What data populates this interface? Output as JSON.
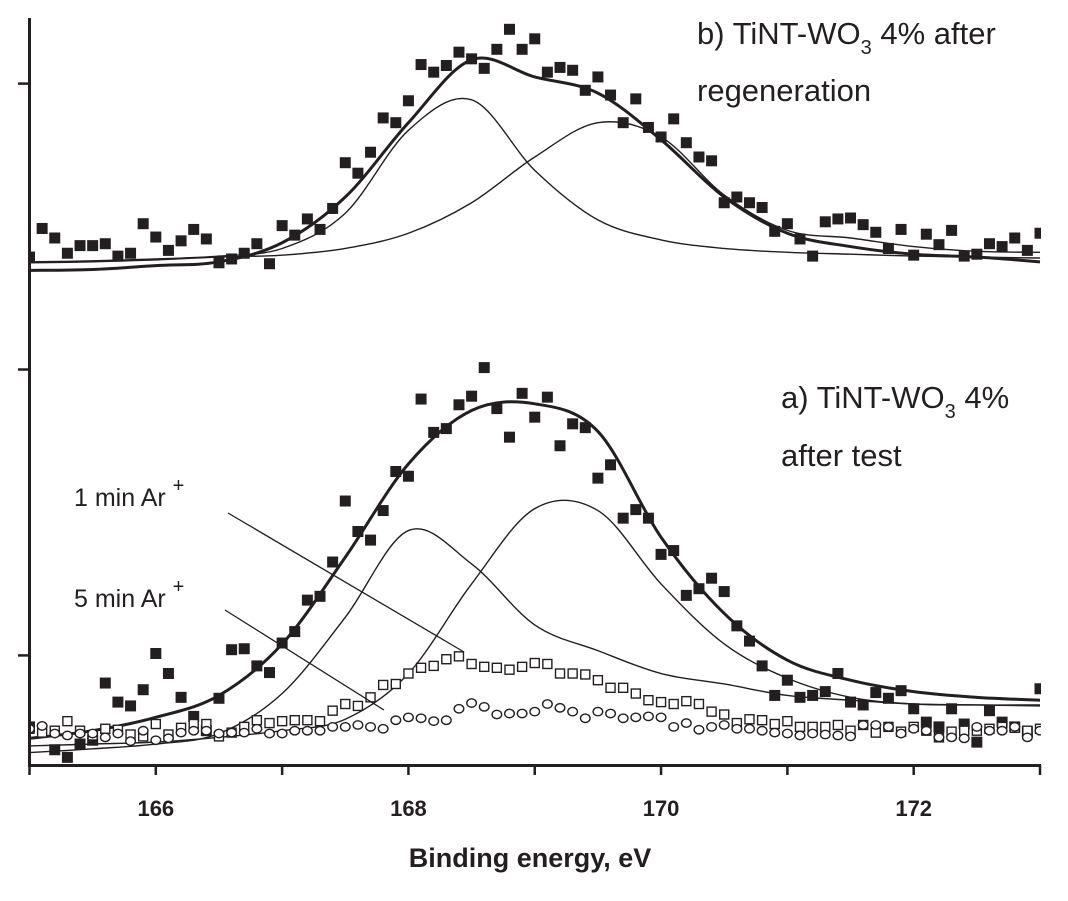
{
  "chart_data": {
    "type": "scatter",
    "title": "",
    "xlabel": "Binding energy, eV",
    "ylabel": "",
    "xlim": [
      165,
      173
    ],
    "ylim": [
      -0.15,
      7.72
    ],
    "xticks": [
      165,
      166,
      167,
      168,
      169,
      170,
      171,
      172,
      173
    ],
    "xtick_labels": [
      "166",
      "168",
      "170",
      "172"
    ],
    "xtick_label_values": [
      166,
      168,
      170,
      172
    ],
    "yticks": [
      1,
      4,
      7
    ],
    "ytick_labels_shown": false,
    "y_units": "arbitrary (no scale printed)",
    "grid": false,
    "legend": "none",
    "colors": {
      "ink": "#231f20",
      "background": "#ffffff"
    },
    "annotations": {
      "panel_b": {
        "prefix": "b) TiNT-WO",
        "sub": "3",
        "suffix": " 4% after",
        "line2": "regeneration"
      },
      "panel_a": {
        "prefix": "a) TiNT-WO",
        "sub": "3",
        "suffix": " 4%",
        "line2": "after test"
      },
      "one_min": {
        "text": "1 min Ar ",
        "sup": "+"
      },
      "five_min": {
        "text": "5 min Ar ",
        "sup": "+"
      }
    },
    "scatter_x": {
      "start": 165.0,
      "step": 0.1,
      "count": 81
    },
    "series": [
      {
        "name": "b) TiNT-WO3 4% after regeneration",
        "marker": "filled-square",
        "values": [
          5.18,
          5.48,
          5.38,
          5.22,
          5.3,
          5.3,
          5.32,
          5.19,
          5.22,
          5.53,
          5.39,
          5.25,
          5.35,
          5.47,
          5.37,
          5.12,
          5.16,
          5.22,
          5.32,
          5.11,
          5.51,
          5.41,
          5.58,
          5.47,
          5.69,
          6.17,
          6.06,
          6.28,
          6.64,
          6.59,
          6.82,
          7.2,
          7.12,
          7.19,
          7.33,
          7.26,
          7.16,
          7.36,
          7.57,
          7.36,
          7.47,
          7.12,
          7.17,
          7.14,
          6.93,
          7.07,
          6.88,
          6.59,
          6.84,
          6.54,
          6.44,
          6.63,
          6.38,
          6.23,
          6.19,
          5.75,
          5.81,
          5.75,
          5.7,
          5.45,
          5.53,
          5.37,
          5.19,
          5.55,
          5.58,
          5.59,
          5.52,
          5.44,
          5.27,
          5.47,
          5.2,
          5.42,
          5.31,
          5.46,
          5.19,
          5.21,
          5.32,
          5.29,
          5.38,
          5.25,
          5.43
        ]
      },
      {
        "name": "a) TiNT-WO3 4% after test",
        "marker": "filled-square",
        "values": [
          0.25,
          -0.2,
          0.01,
          -0.07,
          0.07,
          0.11,
          0.71,
          0.51,
          0.47,
          0.64,
          1.02,
          0.81,
          0.56,
          0.36,
          0.21,
          0.55,
          1.06,
          1.07,
          0.89,
          0.82,
          1.13,
          1.25,
          1.58,
          1.62,
          1.98,
          2.62,
          2.3,
          2.21,
          2.52,
          2.93,
          2.88,
          3.69,
          3.34,
          3.38,
          3.63,
          3.72,
          4.02,
          3.59,
          3.29,
          3.75,
          3.5,
          3.71,
          3.2,
          3.43,
          3.39,
          2.86,
          3.0,
          2.44,
          2.53,
          2.44,
          2.06,
          2.1,
          1.63,
          1.7,
          1.81,
          1.67,
          1.31,
          1.15,
          0.89,
          0.58,
          0.74,
          0.56,
          0.58,
          0.62,
          0.81,
          0.51,
          0.48,
          0.61,
          0.55,
          0.63,
          0.44,
          0.3,
          0.25,
          0.44,
          0.28,
          0.09,
          0.42,
          0.3,
          0.25,
          0.2,
          0.65
        ]
      },
      {
        "name": "1 min Ar +",
        "marker": "open-square",
        "values": [
          0.23,
          0.19,
          0.21,
          0.31,
          0.21,
          0.16,
          0.23,
          0.22,
          0.17,
          0.15,
          0.28,
          0.17,
          0.24,
          0.28,
          0.28,
          0.15,
          0.19,
          0.25,
          0.32,
          0.29,
          0.31,
          0.32,
          0.32,
          0.31,
          0.42,
          0.49,
          0.47,
          0.56,
          0.69,
          0.7,
          0.81,
          0.87,
          0.89,
          0.96,
          0.99,
          0.91,
          0.88,
          0.87,
          0.85,
          0.88,
          0.92,
          0.91,
          0.81,
          0.81,
          0.8,
          0.74,
          0.66,
          0.66,
          0.6,
          0.53,
          0.51,
          0.49,
          0.52,
          0.49,
          0.41,
          0.38,
          0.29,
          0.33,
          0.32,
          0.28,
          0.31,
          0.25,
          0.25,
          0.25,
          0.27,
          0.21,
          0.27,
          0.19,
          0.25,
          0.2,
          0.25,
          0.21,
          0.14,
          0.2,
          0.21,
          0.21,
          0.23,
          0.25,
          0.24,
          0.21,
          0.23
        ]
      },
      {
        "name": "5 min Ar +",
        "marker": "open-circle",
        "values": [
          0.23,
          0.26,
          0.18,
          0.16,
          0.18,
          0.18,
          0.14,
          0.18,
          0.1,
          0.21,
          0.11,
          0.13,
          0.19,
          0.21,
          0.21,
          0.18,
          0.19,
          0.19,
          0.23,
          0.18,
          0.18,
          0.21,
          0.21,
          0.21,
          0.25,
          0.25,
          0.27,
          0.25,
          0.23,
          0.32,
          0.35,
          0.34,
          0.31,
          0.32,
          0.44,
          0.5,
          0.46,
          0.38,
          0.39,
          0.39,
          0.41,
          0.49,
          0.45,
          0.41,
          0.34,
          0.41,
          0.39,
          0.34,
          0.35,
          0.36,
          0.35,
          0.25,
          0.29,
          0.22,
          0.25,
          0.27,
          0.23,
          0.23,
          0.21,
          0.19,
          0.18,
          0.16,
          0.18,
          0.17,
          0.16,
          0.15,
          0.27,
          0.27,
          0.25,
          0.18,
          0.23,
          0.21,
          0.14,
          0.14,
          0.13,
          0.25,
          0.21,
          0.21,
          0.25,
          0.14,
          0.21
        ]
      }
    ],
    "fits_x": [
      165,
      165.5,
      166,
      166.5,
      167,
      167.5,
      168,
      168.5,
      169,
      169.5,
      170,
      170.5,
      171,
      171.5,
      172,
      172.5,
      173
    ],
    "fits": [
      {
        "panel": "b",
        "kind": "envelope",
        "values": [
          5.04,
          5.05,
          5.09,
          5.13,
          5.33,
          5.81,
          6.59,
          7.25,
          7.07,
          6.9,
          6.41,
          5.81,
          5.43,
          5.29,
          5.21,
          5.18,
          5.13
        ]
      },
      {
        "panel": "b",
        "kind": "component",
        "values": [
          5.13,
          5.14,
          5.16,
          5.19,
          5.27,
          5.64,
          6.51,
          6.83,
          6.09,
          5.57,
          5.36,
          5.27,
          5.23,
          5.21,
          5.19,
          5.18,
          5.17
        ]
      },
      {
        "panel": "b",
        "kind": "component",
        "values": [
          5.12,
          5.13,
          5.15,
          5.18,
          5.2,
          5.27,
          5.43,
          5.75,
          6.23,
          6.59,
          6.44,
          5.83,
          5.46,
          5.38,
          5.29,
          5.24,
          5.23
        ]
      },
      {
        "panel": "a",
        "kind": "envelope",
        "values": [
          0.13,
          0.21,
          0.35,
          0.58,
          1.12,
          2.03,
          3.01,
          3.57,
          3.64,
          3.35,
          2.24,
          1.44,
          0.95,
          0.74,
          0.62,
          0.56,
          0.53
        ]
      },
      {
        "panel": "a",
        "kind": "component",
        "values": [
          -0.02,
          0.02,
          0.07,
          0.18,
          0.6,
          1.4,
          2.31,
          1.96,
          1.32,
          1.05,
          0.81,
          0.7,
          0.58,
          0.53,
          0.49,
          0.48,
          0.47
        ]
      },
      {
        "panel": "a",
        "kind": "component",
        "values": [
          0.05,
          0.07,
          0.09,
          0.14,
          0.21,
          0.33,
          0.81,
          1.75,
          2.54,
          2.52,
          1.75,
          1.12,
          0.76,
          0.56,
          0.49,
          0.48,
          0.48
        ]
      }
    ]
  }
}
